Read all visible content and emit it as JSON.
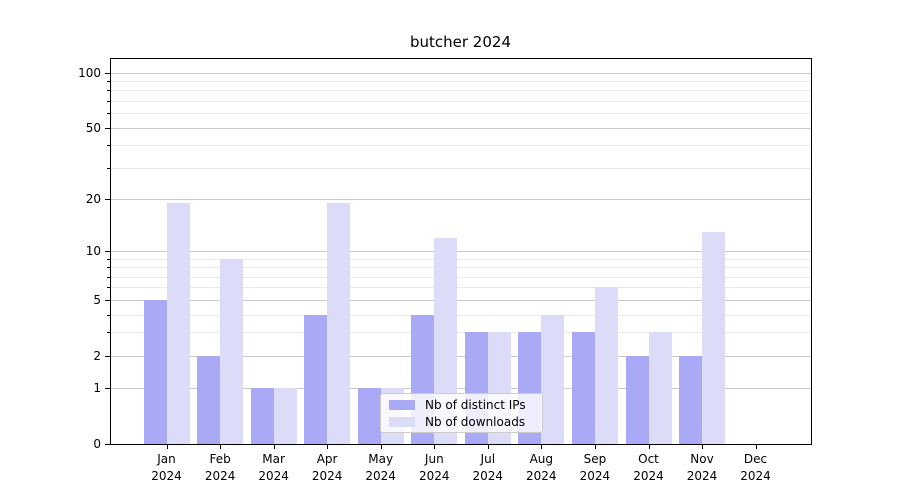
{
  "title": "butcher 2024",
  "chart_data": {
    "type": "bar",
    "title": "butcher 2024",
    "xlabel": "",
    "ylabel": "",
    "categories": [
      "Jan 2024",
      "Feb 2024",
      "Mar 2024",
      "Apr 2024",
      "May 2024",
      "Jun 2024",
      "Jul 2024",
      "Aug 2024",
      "Sep 2024",
      "Oct 2024",
      "Nov 2024",
      "Dec 2024"
    ],
    "series": [
      {
        "name": "Nb of distinct IPs",
        "color": "#a9a9f6",
        "values": [
          5,
          2,
          1,
          4,
          1,
          4,
          3,
          3,
          3,
          2,
          2,
          0
        ]
      },
      {
        "name": "Nb of downloads",
        "color": "#dcdcf9",
        "values": [
          19,
          9,
          1,
          19,
          1,
          12,
          3,
          4,
          6,
          3,
          13,
          0
        ]
      }
    ],
    "yscale": "log1p",
    "ylim": [
      0,
      120
    ],
    "yticks": [
      0,
      1,
      2,
      5,
      10,
      20,
      50,
      100
    ],
    "ytick_labels": [
      "0",
      "1",
      "2",
      "5",
      "10",
      "20",
      "50",
      "100"
    ],
    "yminor": [
      3,
      4,
      6,
      7,
      8,
      9,
      30,
      40,
      60,
      70,
      80,
      90
    ],
    "grid": true,
    "legend_position": "lower center"
  },
  "colors": {
    "grid_major": "#c8c8c8",
    "grid_minor": "#e9e9e9",
    "spine": "#000000",
    "legend_border": "#cccccc"
  }
}
